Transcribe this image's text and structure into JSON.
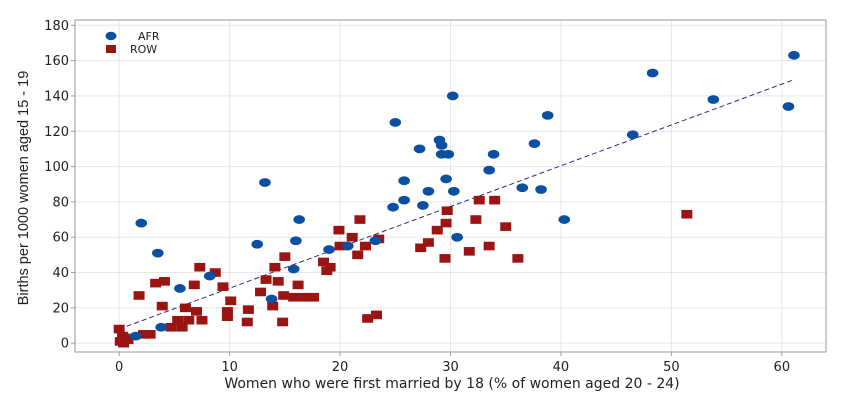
{
  "chart_data": {
    "type": "scatter",
    "xlabel": "Women who were first married by 18 (% of women aged 20 - 24)",
    "ylabel": "Births per 1000 women aged 15 - 19",
    "xlim": [
      -4,
      64
    ],
    "ylim": [
      -5,
      183
    ],
    "x_ticks": [
      "0",
      "10",
      "20",
      "30",
      "40",
      "50",
      "60"
    ],
    "y_ticks": [
      "0",
      "20",
      "40",
      "60",
      "80",
      "100",
      "120",
      "140",
      "160",
      "180"
    ],
    "grid": true,
    "legend_position": "top-left",
    "trendline": {
      "x": [
        0,
        61
      ],
      "y": [
        8,
        149
      ],
      "color": "#2b2b8c",
      "style": "dashed"
    },
    "series": [
      {
        "name": "AFR",
        "marker": "circle",
        "color": "#0a4fa0",
        "points": [
          [
            1.5,
            4
          ],
          [
            2,
            68
          ],
          [
            3.5,
            51
          ],
          [
            3.8,
            9
          ],
          [
            5.5,
            31
          ],
          [
            8.2,
            38
          ],
          [
            12.5,
            56
          ],
          [
            13.2,
            91
          ],
          [
            13.8,
            25
          ],
          [
            15.8,
            42
          ],
          [
            16,
            58
          ],
          [
            16.3,
            70
          ],
          [
            19,
            53
          ],
          [
            20.7,
            55
          ],
          [
            23.2,
            58
          ],
          [
            24.8,
            77
          ],
          [
            25,
            125
          ],
          [
            25.8,
            81
          ],
          [
            25.8,
            92
          ],
          [
            27.2,
            110
          ],
          [
            27.5,
            78
          ],
          [
            28,
            86
          ],
          [
            29,
            115
          ],
          [
            29.2,
            112
          ],
          [
            29.2,
            107
          ],
          [
            29.8,
            107
          ],
          [
            29.6,
            93
          ],
          [
            30.2,
            140
          ],
          [
            30.3,
            86
          ],
          [
            30.6,
            60
          ],
          [
            33.5,
            98
          ],
          [
            33.9,
            107
          ],
          [
            36.5,
            88
          ],
          [
            37.6,
            113
          ],
          [
            38.2,
            87
          ],
          [
            38.8,
            129
          ],
          [
            40.3,
            70
          ],
          [
            46.5,
            118
          ],
          [
            48.3,
            153
          ],
          [
            53.8,
            138
          ],
          [
            60.6,
            134
          ],
          [
            61.1,
            163
          ]
        ]
      },
      {
        "name": "ROW",
        "marker": "square",
        "color": "#9b1414",
        "points": [
          [
            0,
            8
          ],
          [
            0.1,
            1
          ],
          [
            0.3,
            4
          ],
          [
            0.4,
            0
          ],
          [
            0.5,
            3
          ],
          [
            0.8,
            2
          ],
          [
            1.8,
            27
          ],
          [
            2.2,
            5
          ],
          [
            2.8,
            5
          ],
          [
            3.3,
            34
          ],
          [
            3.9,
            21
          ],
          [
            4.1,
            35
          ],
          [
            4.7,
            9
          ],
          [
            5.3,
            13
          ],
          [
            5.7,
            9
          ],
          [
            6,
            20
          ],
          [
            6.3,
            13
          ],
          [
            6.8,
            33
          ],
          [
            7,
            18
          ],
          [
            7.3,
            43
          ],
          [
            7.5,
            13
          ],
          [
            8.7,
            40
          ],
          [
            9.4,
            32
          ],
          [
            9.8,
            18
          ],
          [
            9.8,
            15
          ],
          [
            10.1,
            24
          ],
          [
            11.6,
            12
          ],
          [
            11.7,
            19
          ],
          [
            12.8,
            29
          ],
          [
            13.3,
            36
          ],
          [
            13.9,
            21
          ],
          [
            14.1,
            43
          ],
          [
            14.4,
            35
          ],
          [
            14.8,
            12
          ],
          [
            14.9,
            27
          ],
          [
            15,
            49
          ],
          [
            15.8,
            26
          ],
          [
            16.2,
            33
          ],
          [
            16.6,
            26
          ],
          [
            17.1,
            26
          ],
          [
            17.6,
            26
          ],
          [
            18.5,
            46
          ],
          [
            18.8,
            41
          ],
          [
            19.1,
            43
          ],
          [
            19.9,
            64
          ],
          [
            20,
            55
          ],
          [
            21.1,
            60
          ],
          [
            21.6,
            50
          ],
          [
            21.8,
            70
          ],
          [
            22.3,
            55
          ],
          [
            22.5,
            14
          ],
          [
            23.3,
            16
          ],
          [
            23.5,
            59
          ],
          [
            27.3,
            54
          ],
          [
            28,
            57
          ],
          [
            28.8,
            64
          ],
          [
            29.5,
            48
          ],
          [
            29.6,
            68
          ],
          [
            29.7,
            75
          ],
          [
            31.7,
            52
          ],
          [
            32.3,
            70
          ],
          [
            32.6,
            81
          ],
          [
            33.5,
            55
          ],
          [
            34,
            81
          ],
          [
            35,
            66
          ],
          [
            36.1,
            48
          ],
          [
            51.4,
            73
          ]
        ]
      }
    ]
  }
}
